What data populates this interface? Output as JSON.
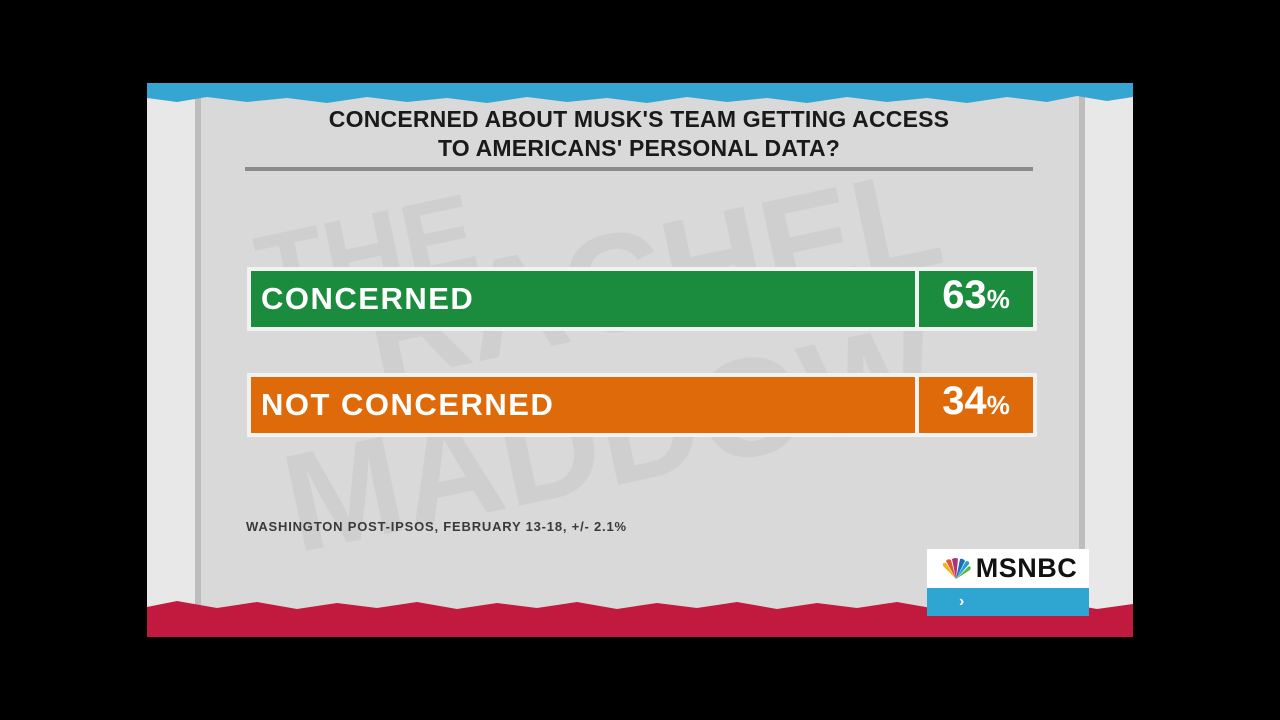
{
  "title": {
    "line1": "CONCERNED ABOUT MUSK'S TEAM GETTING ACCESS",
    "line2": "TO AMERICANS' PERSONAL DATA?"
  },
  "chart_data": {
    "type": "bar",
    "categories": [
      "CONCERNED",
      "NOT CONCERNED"
    ],
    "values": [
      63,
      34
    ],
    "value_labels": [
      "63",
      "34"
    ],
    "unit": "%",
    "colors": [
      "#1b8b3d",
      "#de6a0a"
    ]
  },
  "source": "WASHINGTON POST-IPSOS, FEBRUARY 13-18, +/- 2.1%",
  "bug": {
    "network": "MSNBC",
    "logo_icon": "nbc-peacock-icon",
    "chevron_icon": "chevron-right-icon",
    "chevron": "›"
  },
  "colors": {
    "top_stripe": "#35a6d2",
    "bottom_stripe": "#c21a3e",
    "panel_bg": "#d6d6d6"
  }
}
